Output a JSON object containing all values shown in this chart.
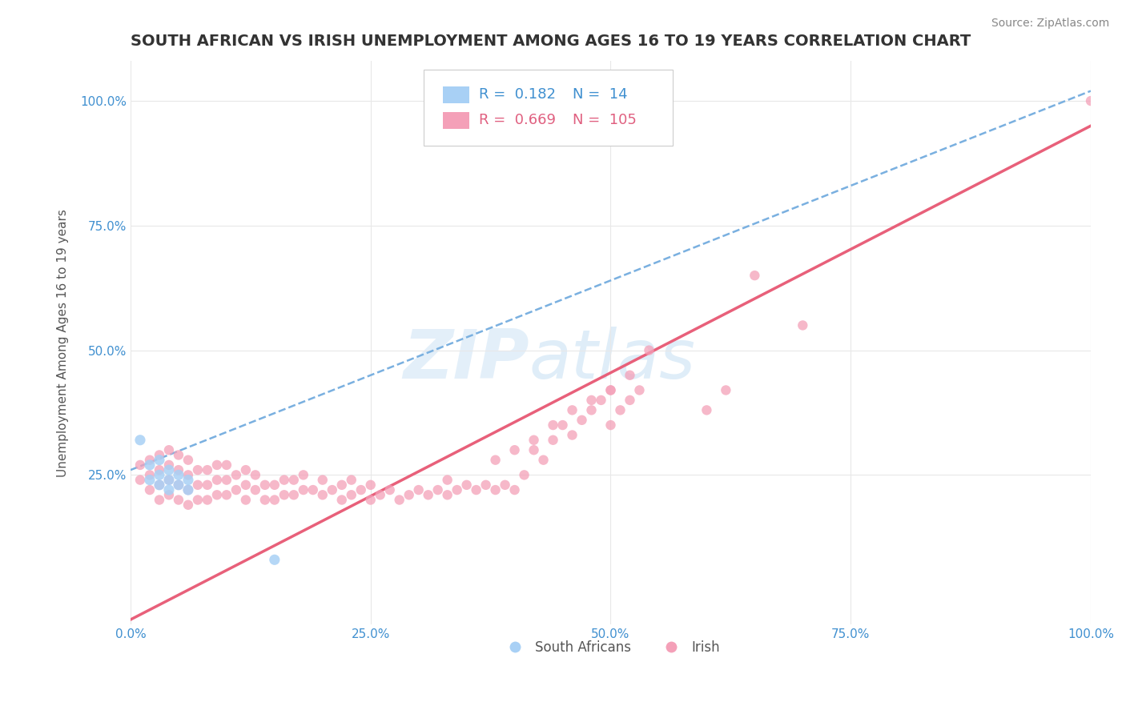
{
  "title": "SOUTH AFRICAN VS IRISH UNEMPLOYMENT AMONG AGES 16 TO 19 YEARS CORRELATION CHART",
  "source": "Source: ZipAtlas.com",
  "ylabel": "Unemployment Among Ages 16 to 19 years",
  "xlim": [
    0.0,
    1.0
  ],
  "ylim": [
    -0.05,
    1.08
  ],
  "xtick_labels": [
    "0.0%",
    "25.0%",
    "50.0%",
    "75.0%",
    "100.0%"
  ],
  "xtick_vals": [
    0.0,
    0.25,
    0.5,
    0.75,
    1.0
  ],
  "ytick_labels": [
    "25.0%",
    "50.0%",
    "75.0%",
    "100.0%"
  ],
  "ytick_vals": [
    0.25,
    0.5,
    0.75,
    1.0
  ],
  "legend_bottom_labels": [
    "South Africans",
    "Irish"
  ],
  "sa_R": 0.182,
  "sa_N": 14,
  "irish_R": 0.669,
  "irish_N": 105,
  "sa_color": "#a8d0f5",
  "irish_color": "#f4a0b8",
  "sa_line_color": "#7ab0e0",
  "irish_line_color": "#e8607a",
  "background_color": "#ffffff",
  "grid_color": "#e8e8e8",
  "sa_scatter_x": [
    0.01,
    0.02,
    0.02,
    0.03,
    0.03,
    0.03,
    0.04,
    0.04,
    0.04,
    0.05,
    0.05,
    0.06,
    0.06,
    0.15
  ],
  "sa_scatter_y": [
    0.32,
    0.24,
    0.27,
    0.23,
    0.25,
    0.28,
    0.22,
    0.24,
    0.26,
    0.23,
    0.25,
    0.22,
    0.24,
    0.08
  ],
  "irish_scatter_x": [
    0.01,
    0.01,
    0.02,
    0.02,
    0.02,
    0.03,
    0.03,
    0.03,
    0.03,
    0.04,
    0.04,
    0.04,
    0.04,
    0.05,
    0.05,
    0.05,
    0.05,
    0.06,
    0.06,
    0.06,
    0.06,
    0.07,
    0.07,
    0.07,
    0.08,
    0.08,
    0.08,
    0.09,
    0.09,
    0.09,
    0.1,
    0.1,
    0.1,
    0.11,
    0.11,
    0.12,
    0.12,
    0.12,
    0.13,
    0.13,
    0.14,
    0.14,
    0.15,
    0.15,
    0.16,
    0.16,
    0.17,
    0.17,
    0.18,
    0.18,
    0.19,
    0.2,
    0.2,
    0.21,
    0.22,
    0.22,
    0.23,
    0.23,
    0.24,
    0.25,
    0.25,
    0.26,
    0.27,
    0.28,
    0.29,
    0.3,
    0.31,
    0.32,
    0.33,
    0.33,
    0.34,
    0.35,
    0.36,
    0.37,
    0.38,
    0.39,
    0.4,
    0.41,
    0.42,
    0.43,
    0.44,
    0.45,
    0.46,
    0.47,
    0.48,
    0.49,
    0.5,
    0.5,
    0.51,
    0.52,
    0.53,
    0.38,
    0.4,
    0.42,
    0.44,
    0.46,
    0.48,
    0.5,
    0.52,
    0.54,
    0.6,
    0.62,
    0.65,
    0.7,
    1.0
  ],
  "irish_scatter_y": [
    0.24,
    0.27,
    0.22,
    0.25,
    0.28,
    0.2,
    0.23,
    0.26,
    0.29,
    0.21,
    0.24,
    0.27,
    0.3,
    0.2,
    0.23,
    0.26,
    0.29,
    0.19,
    0.22,
    0.25,
    0.28,
    0.2,
    0.23,
    0.26,
    0.2,
    0.23,
    0.26,
    0.21,
    0.24,
    0.27,
    0.21,
    0.24,
    0.27,
    0.22,
    0.25,
    0.2,
    0.23,
    0.26,
    0.22,
    0.25,
    0.2,
    0.23,
    0.2,
    0.23,
    0.21,
    0.24,
    0.21,
    0.24,
    0.22,
    0.25,
    0.22,
    0.21,
    0.24,
    0.22,
    0.2,
    0.23,
    0.21,
    0.24,
    0.22,
    0.2,
    0.23,
    0.21,
    0.22,
    0.2,
    0.21,
    0.22,
    0.21,
    0.22,
    0.21,
    0.24,
    0.22,
    0.23,
    0.22,
    0.23,
    0.22,
    0.23,
    0.22,
    0.25,
    0.3,
    0.28,
    0.32,
    0.35,
    0.33,
    0.36,
    0.38,
    0.4,
    0.35,
    0.42,
    0.38,
    0.4,
    0.42,
    0.28,
    0.3,
    0.32,
    0.35,
    0.38,
    0.4,
    0.42,
    0.45,
    0.5,
    0.38,
    0.42,
    0.65,
    0.55,
    1.0
  ],
  "sa_line_x0": 0.0,
  "sa_line_y0": 0.26,
  "sa_line_x1": 1.0,
  "sa_line_y1": 1.02,
  "irish_line_x0": 0.0,
  "irish_line_y0": -0.04,
  "irish_line_x1": 1.0,
  "irish_line_y1": 0.95
}
